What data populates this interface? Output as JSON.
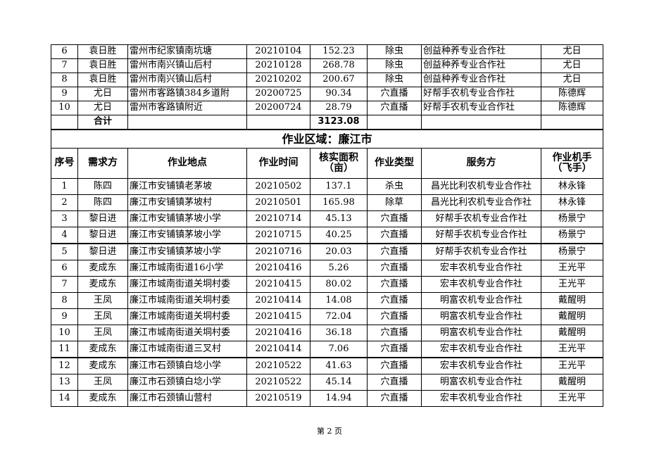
{
  "top_rows": [
    [
      "6",
      "袁日胜",
      "雷州市纪家镇南坑塘",
      "20210104",
      "152.23",
      "除虫",
      "创益种养专业合作社",
      "尤日"
    ],
    [
      "7",
      "袁日胜",
      "雷州市南兴镇山后村",
      "20210128",
      "268.78",
      "除虫",
      "创益种养专业合作社",
      "尤日"
    ],
    [
      "8",
      "袁日胜",
      "雷州市南兴镇山后村",
      "20210202",
      "200.67",
      "除虫",
      "创益种养专业合作社",
      "尤日"
    ],
    [
      "9",
      "尤日",
      "雷州市客路镇384乡道附",
      "20200725",
      "90.34",
      "穴直播",
      "好帮手农机专业合作社",
      "陈德辉"
    ],
    [
      "10",
      "尤日",
      "雷州市客路镇附近",
      "20200724",
      "28.79",
      "穴直播",
      "好帮手农机专业合作社",
      "陈德辉"
    ]
  ],
  "total": {
    "label": "合计",
    "value": "3123.08"
  },
  "section_title": "作业区域：廉江市",
  "headers": [
    "序号",
    "需求方",
    "作业地点",
    "作业时间",
    "核实面积（亩）",
    "作业类型",
    "服务方",
    "作业机手（飞手）"
  ],
  "rows": [
    [
      "1",
      "陈四",
      "廉江市安铺镇老茅坡",
      "20210502",
      "137.1",
      "杀虫",
      "昌光比利农机专业合作社",
      "林永锋"
    ],
    [
      "2",
      "陈四",
      "廉江市安铺镇茅坡村",
      "20210501",
      "165.98",
      "除草",
      "昌光比利农机专业合作社",
      "林永锋"
    ],
    [
      "3",
      "黎日进",
      "廉江市安铺镇茅坡小学",
      "20210714",
      "45.13",
      "穴直播",
      "好帮手农机专业合作社",
      "杨景宁"
    ],
    [
      "4",
      "黎日进",
      "廉江市安铺镇茅坡小学",
      "20210715",
      "40.25",
      "穴直播",
      "好帮手农机专业合作社",
      "杨景宁"
    ],
    [
      "5",
      "黎日进",
      "廉江市安铺镇茅坡小学",
      "20210716",
      "20.03",
      "穴直播",
      "好帮手农机专业合作社",
      "杨景宁"
    ],
    [
      "6",
      "麦成东",
      "廉江市城南街道16小学",
      "20210416",
      "5.26",
      "穴直播",
      "宏丰农机专业合作社",
      "王光平"
    ],
    [
      "7",
      "麦成东",
      "廉江市城南街道关垌村委",
      "20210415",
      "80.02",
      "穴直播",
      "宏丰农机专业合作社",
      "王光平"
    ],
    [
      "8",
      "王凤",
      "廉江市城南街道关垌村委",
      "20210414",
      "14.08",
      "穴直播",
      "明富农机专业合作社",
      "戴醒明"
    ],
    [
      "9",
      "王凤",
      "廉江市城南街道关垌村委",
      "20210415",
      "72.04",
      "穴直播",
      "明富农机专业合作社",
      "戴醒明"
    ],
    [
      "10",
      "王凤",
      "廉江市城南街道关垌村委",
      "20210416",
      "36.18",
      "穴直播",
      "明富农机专业合作社",
      "戴醒明"
    ],
    [
      "11",
      "麦成东",
      "廉江市城南街道三叉村",
      "20210414",
      "7.06",
      "穴直播",
      "宏丰农机专业合作社",
      "王光平"
    ],
    [
      "12",
      "麦成东",
      "廉江市石颈镇白埝小学",
      "20210522",
      "41.63",
      "穴直播",
      "宏丰农机专业合作社",
      "王光平"
    ],
    [
      "13",
      "王凤",
      "廉江市石颈镇白埝小学",
      "20210522",
      "45.14",
      "穴直播",
      "明富农机专业合作社",
      "戴醒明"
    ],
    [
      "14",
      "麦成东",
      "廉江市石颈镇山营村",
      "20210519",
      "14.94",
      "穴直播",
      "宏丰农机专业合作社",
      "王光平"
    ]
  ],
  "footer": "第 2 页"
}
